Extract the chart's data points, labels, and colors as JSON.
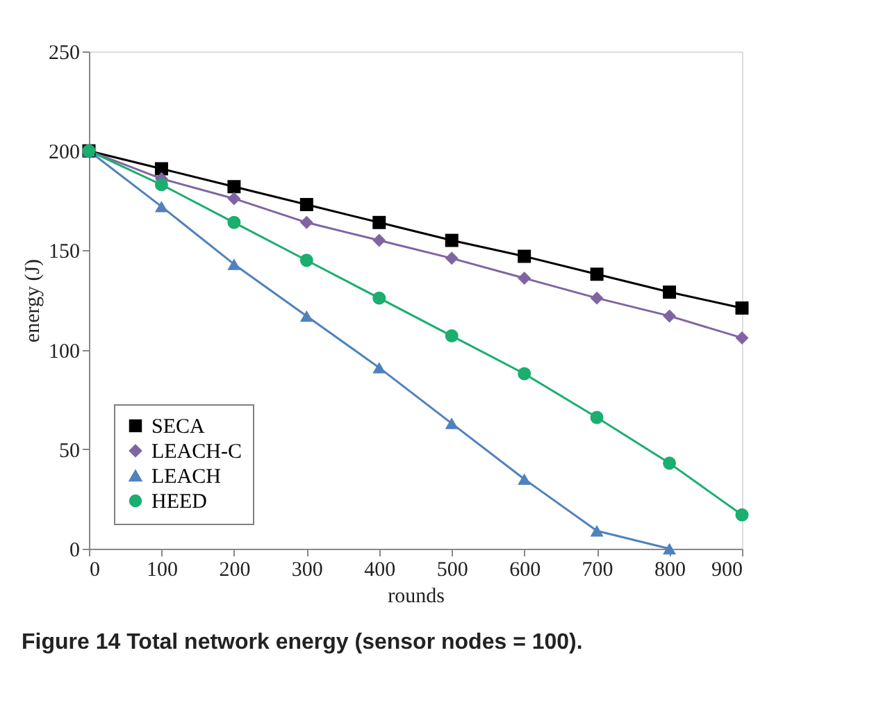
{
  "chart_data": {
    "type": "line",
    "title": "Figure 14 Total network energy (sensor nodes = 100).",
    "xlabel": "rounds",
    "ylabel": "energy (J)",
    "x": [
      0,
      100,
      200,
      300,
      400,
      500,
      600,
      700,
      800,
      900
    ],
    "series": [
      {
        "name": "SECA",
        "color": "#000000",
        "marker": "square",
        "values": [
          200,
          191,
          182,
          173,
          164,
          155,
          147,
          138,
          129,
          121
        ]
      },
      {
        "name": "LEACH-C",
        "color": "#8064a2",
        "marker": "diamond",
        "values": [
          200,
          186,
          176,
          164,
          155,
          146,
          136,
          126,
          117,
          106
        ]
      },
      {
        "name": "LEACH",
        "color": "#4f81bd",
        "marker": "triangle",
        "values": [
          200,
          172,
          143,
          117,
          91,
          63,
          35,
          9,
          0,
          null
        ]
      },
      {
        "name": "HEED",
        "color": "#1aae6f",
        "marker": "circle",
        "values": [
          200,
          183,
          164,
          145,
          126,
          107,
          88,
          66,
          43,
          17
        ]
      }
    ],
    "xlim": [
      0,
      900
    ],
    "xticks": [
      0,
      100,
      200,
      300,
      400,
      500,
      600,
      700,
      800,
      900
    ],
    "ylim": [
      0,
      250
    ],
    "yticks": [
      0,
      50,
      100,
      150,
      200,
      250
    ],
    "grid": false,
    "legend": "bottom left",
    "line_style": "solid"
  }
}
